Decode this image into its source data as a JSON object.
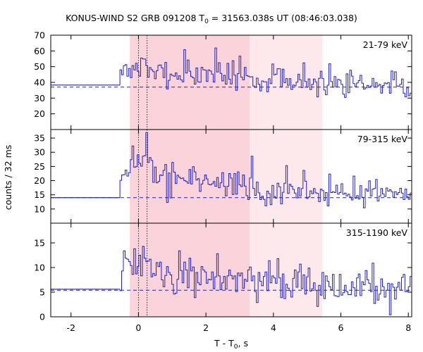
{
  "chart_data": {
    "type": "line",
    "title_main": "KONUS-WIND S2 GRB 091208 T",
    "title_sub": "0",
    "title_rest": " = 31563.038s UT (08:46:03.038)",
    "xlabel_main": "T - T",
    "xlabel_sub": "0",
    "xlabel_rest": ", s",
    "ylabel": "counts / 32 ms",
    "xlim": [
      -2.6,
      8.1
    ],
    "xticks": [
      -2,
      0,
      2,
      4,
      6,
      8
    ],
    "dotted_lines_x": [
      0.0,
      0.256
    ],
    "shaded_intervals": [
      {
        "from": -0.256,
        "to": 3.3,
        "color": "#fad4da"
      },
      {
        "from": 3.3,
        "to": 5.45,
        "color": "#fde9ec"
      }
    ],
    "line_color": "#2222bb",
    "bin_width_s": 0.032,
    "panels": [
      {
        "label": "21-79 keV",
        "ylim": [
          10,
          70
        ],
        "yticks": [
          20,
          30,
          40,
          50,
          60,
          70
        ],
        "background": 37.0,
        "pre_level": 38.3,
        "onset": -0.55,
        "series": {
          "name": "21-79 keV",
          "step_x": [],
          "step_y": []
        },
        "profile": {
          "peak": 56,
          "peak_t": 0.0,
          "mid": 46,
          "late": 41,
          "noise": 5.5,
          "seed": 7
        }
      },
      {
        "label": "79-315 keV",
        "ylim": [
          5,
          38
        ],
        "yticks": [
          10,
          15,
          20,
          25,
          30,
          35
        ],
        "background": 14.0,
        "pre_level": 14.0,
        "onset": -0.55,
        "series": {
          "name": "79-315 keV",
          "step_x": [],
          "step_y": []
        },
        "profile": {
          "peak": 31,
          "peak_t": 0.1,
          "mid": 22,
          "late": 17,
          "noise": 3.2,
          "seed": 19
        }
      },
      {
        "label": "315-1190 keV",
        "ylim": [
          0,
          19
        ],
        "yticks": [
          0,
          5,
          10,
          15
        ],
        "background": 5.4,
        "pre_level": 5.6,
        "onset": -0.55,
        "series": {
          "name": "315-1190 keV",
          "step_x": [],
          "step_y": []
        },
        "profile": {
          "peak": 12,
          "peak_t": 0.0,
          "mid": 9,
          "late": 6.5,
          "noise": 2.4,
          "seed": 31
        }
      }
    ]
  }
}
